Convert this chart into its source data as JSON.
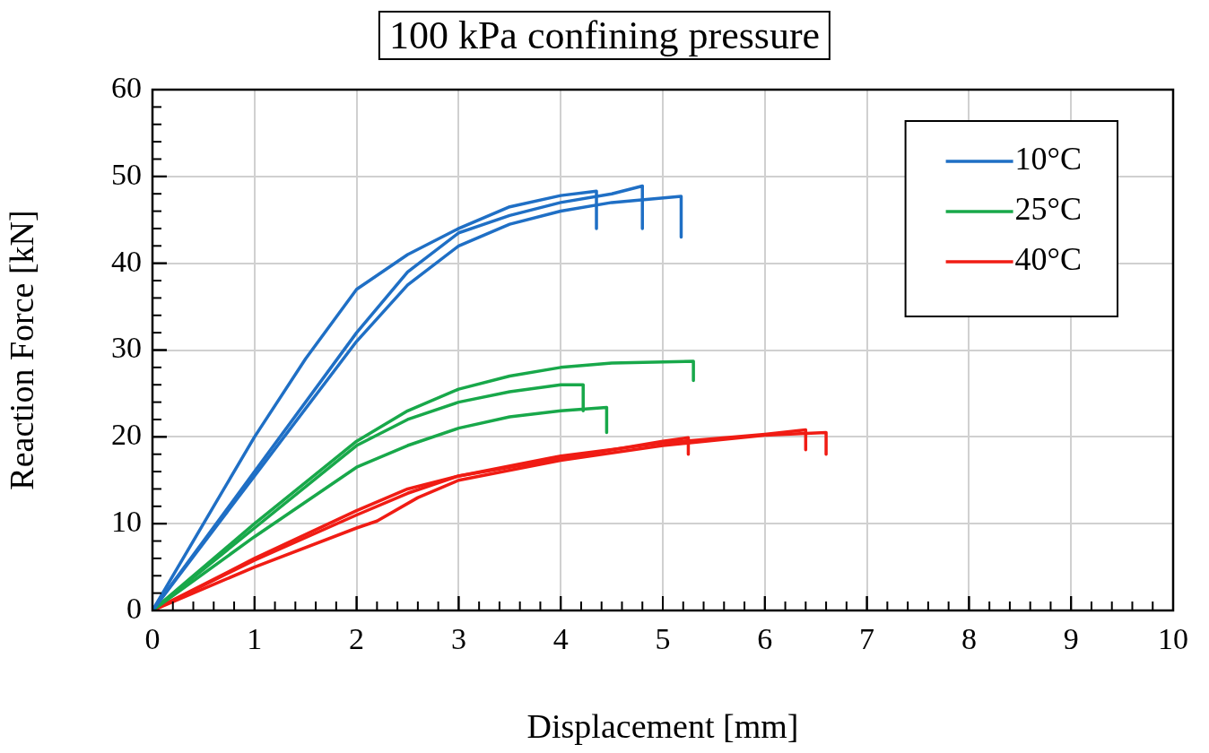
{
  "chart_data": {
    "type": "line",
    "title": "100 kPa confining pressure",
    "xlabel": "Displacement [mm]",
    "ylabel": "Reaction Force [kN]",
    "xlim": [
      0,
      10
    ],
    "xticks": [
      0,
      1,
      2,
      3,
      4,
      5,
      6,
      7,
      8,
      9,
      10
    ],
    "ylim": [
      0,
      60
    ],
    "yticks": [
      0,
      10,
      20,
      30,
      40,
      50,
      60
    ],
    "grid": true,
    "legend": "top right",
    "marker": "none",
    "line_style": "solid",
    "series": [
      {
        "name": "10°C",
        "color": "#1f6fc5",
        "x": [
          0,
          0.5,
          1,
          1.5,
          2,
          2.5,
          3,
          3.5,
          4,
          4.35,
          4.35
        ],
        "values": [
          0,
          10,
          20,
          29,
          37,
          41,
          44,
          46.5,
          47.8,
          48.3,
          44
        ]
      },
      {
        "color": "#1f6fc5",
        "x": [
          0,
          1,
          2,
          2.5,
          3,
          3.5,
          4,
          4.5,
          4.8,
          4.8
        ],
        "values": [
          0,
          16,
          32,
          39,
          43.5,
          45.5,
          47,
          48,
          48.9,
          44
        ]
      },
      {
        "color": "#1f6fc5",
        "x": [
          0,
          1,
          2,
          2.5,
          3,
          3.5,
          4,
          4.5,
          5.18,
          5.18
        ],
        "values": [
          0,
          15.5,
          31,
          37.5,
          42,
          44.5,
          46,
          47,
          47.7,
          43
        ]
      },
      {
        "name": "25°C",
        "color": "#18a84a",
        "x": [
          0,
          1,
          2,
          2.5,
          3,
          3.5,
          4,
          4.5,
          5.3,
          5.3
        ],
        "values": [
          0,
          10,
          19.5,
          23,
          25.5,
          27,
          28,
          28.5,
          28.7,
          26.5
        ]
      },
      {
        "color": "#18a84a",
        "x": [
          0,
          1,
          2,
          2.5,
          3,
          3.5,
          4,
          4.22,
          4.22
        ],
        "values": [
          0,
          9.5,
          19,
          22,
          24,
          25.2,
          26,
          26,
          23
        ]
      },
      {
        "color": "#18a84a",
        "x": [
          0,
          1,
          2,
          2.5,
          3,
          3.5,
          4,
          4.45,
          4.45
        ],
        "values": [
          0,
          8.5,
          16.5,
          19,
          21,
          22.3,
          23,
          23.4,
          20.5
        ]
      },
      {
        "name": "40°C",
        "color": "#f01c14",
        "x": [
          0,
          1,
          2,
          2.5,
          3,
          4,
          5,
          5.25,
          5.25
        ],
        "values": [
          0,
          6,
          11.5,
          14,
          15.5,
          17.5,
          19.5,
          19.9,
          18
        ]
      },
      {
        "color": "#f01c14",
        "x": [
          0,
          1,
          2,
          2.5,
          3,
          4,
          5,
          6,
          6.4,
          6.4
        ],
        "values": [
          0,
          5.8,
          11,
          13.5,
          15.5,
          17.8,
          19.3,
          20.3,
          20.8,
          18.5
        ]
      },
      {
        "color": "#f01c14",
        "x": [
          0,
          1,
          2,
          2.2,
          2.6,
          3,
          4,
          5,
          6,
          6.6,
          6.6
        ],
        "values": [
          0,
          5,
          9.5,
          10.3,
          13,
          15,
          17.3,
          19,
          20.2,
          20.5,
          18
        ]
      }
    ]
  }
}
